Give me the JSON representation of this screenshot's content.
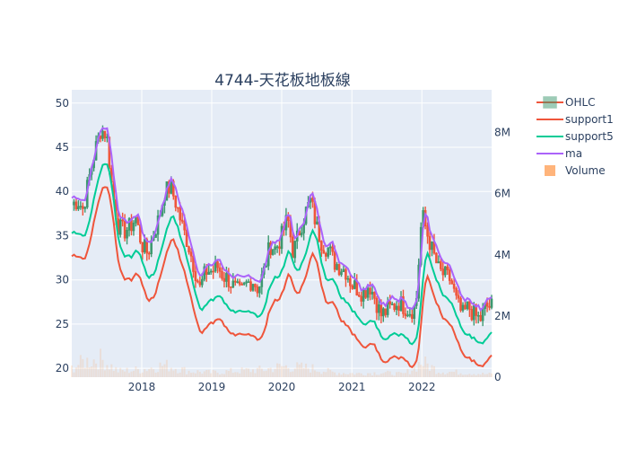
{
  "chart_data": {
    "type": "candlestick",
    "title": "4744-天花板地板線",
    "x_ticks": [
      "2018",
      "2019",
      "2020",
      "2021",
      "2022"
    ],
    "y_ticks": [
      20,
      25,
      30,
      35,
      40,
      45,
      50
    ],
    "y_range": [
      19,
      51.5
    ],
    "y2_ticks": [
      "0",
      "2M",
      "4M",
      "6M",
      "8M"
    ],
    "y2_tick_values": [
      0,
      2,
      4,
      6,
      8
    ],
    "y2_range": [
      0,
      9.4
    ],
    "x_range": [
      "2017-01-01",
      "2022-12-31"
    ],
    "legend": [
      "OHLC",
      "support1",
      "support5",
      "ma",
      "Volume"
    ],
    "colors": {
      "increasing": "#3d9970",
      "decreasing": "#ef553b",
      "support1": "#ef553b",
      "support5": "#00cc96",
      "ma": "#ab63fa",
      "volume": "#ffa15a",
      "plot_bg": "#e5ecf6",
      "grid": "#ffffff"
    },
    "close_series": [
      [
        "2017-01-01",
        38.5
      ],
      [
        "2017-02-01",
        39.0
      ],
      [
        "2017-03-01",
        38.0
      ],
      [
        "2017-04-01",
        41.5
      ],
      [
        "2017-05-01",
        44.5
      ],
      [
        "2017-06-01",
        47.0
      ],
      [
        "2017-07-01",
        46.5
      ],
      [
        "2017-08-01",
        40.0
      ],
      [
        "2017-09-01",
        36.0
      ],
      [
        "2017-10-01",
        35.5
      ],
      [
        "2017-11-01",
        36.0
      ],
      [
        "2017-12-01",
        37.0
      ],
      [
        "2018-01-01",
        34.0
      ],
      [
        "2018-02-01",
        33.0
      ],
      [
        "2018-03-01",
        35.0
      ],
      [
        "2018-04-01",
        37.0
      ],
      [
        "2018-05-01",
        40.0
      ],
      [
        "2018-06-01",
        40.5
      ],
      [
        "2018-07-01",
        38.5
      ],
      [
        "2018-08-01",
        36.0
      ],
      [
        "2018-09-01",
        34.0
      ],
      [
        "2018-10-01",
        31.5
      ],
      [
        "2018-11-01",
        29.0
      ],
      [
        "2018-12-01",
        31.0
      ],
      [
        "2019-01-01",
        31.0
      ],
      [
        "2019-02-01",
        31.5
      ],
      [
        "2019-03-01",
        30.5
      ],
      [
        "2019-04-01",
        30.0
      ],
      [
        "2019-05-01",
        29.0
      ],
      [
        "2019-06-01",
        28.5
      ],
      [
        "2019-07-01",
        29.5
      ],
      [
        "2019-08-01",
        30.0
      ],
      [
        "2019-09-01",
        29.0
      ],
      [
        "2019-10-01",
        31.0
      ],
      [
        "2019-11-01",
        34.0
      ],
      [
        "2019-12-01",
        33.5
      ],
      [
        "2020-01-01",
        35.0
      ],
      [
        "2020-02-01",
        37.0
      ],
      [
        "2020-03-01",
        33.0
      ],
      [
        "2020-04-01",
        35.5
      ],
      [
        "2020-05-01",
        37.5
      ],
      [
        "2020-06-01",
        39.0
      ],
      [
        "2020-07-01",
        36.0
      ],
      [
        "2020-08-01",
        34.0
      ],
      [
        "2020-09-01",
        33.5
      ],
      [
        "2020-10-01",
        32.0
      ],
      [
        "2020-11-01",
        31.5
      ],
      [
        "2020-12-01",
        31.0
      ],
      [
        "2021-01-01",
        29.5
      ],
      [
        "2021-02-01",
        29.0
      ],
      [
        "2021-03-01",
        28.5
      ],
      [
        "2021-04-01",
        29.5
      ],
      [
        "2021-05-01",
        28.0
      ],
      [
        "2021-06-01",
        26.0
      ],
      [
        "2021-07-01",
        26.5
      ],
      [
        "2021-08-01",
        27.0
      ],
      [
        "2021-09-01",
        27.5
      ],
      [
        "2021-10-01",
        27.0
      ],
      [
        "2021-11-01",
        26.5
      ],
      [
        "2021-12-01",
        27.0
      ],
      [
        "2022-01-01",
        37.5
      ],
      [
        "2022-02-01",
        35.0
      ],
      [
        "2022-03-01",
        33.0
      ],
      [
        "2022-04-01",
        31.0
      ],
      [
        "2022-05-01",
        30.5
      ],
      [
        "2022-06-01",
        30.0
      ],
      [
        "2022-07-01",
        27.5
      ],
      [
        "2022-08-01",
        26.0
      ],
      [
        "2022-09-01",
        27.0
      ],
      [
        "2022-10-01",
        26.0
      ],
      [
        "2022-11-01",
        25.5
      ],
      [
        "2022-12-01",
        27.0
      ]
    ],
    "ma_offset": 0.8,
    "support5_offset": 3.2,
    "support1_offset": 5.8,
    "volume_series": [
      [
        "2017-01-01",
        0.3
      ],
      [
        "2017-03-01",
        0.5
      ],
      [
        "2017-06-01",
        0.6
      ],
      [
        "2017-09-01",
        0.2
      ],
      [
        "2018-01-01",
        0.25
      ],
      [
        "2018-05-01",
        0.4
      ],
      [
        "2018-09-01",
        0.2
      ],
      [
        "2019-01-01",
        0.15
      ],
      [
        "2019-05-01",
        0.2
      ],
      [
        "2019-10-01",
        0.25
      ],
      [
        "2020-01-01",
        0.35
      ],
      [
        "2020-06-01",
        0.3
      ],
      [
        "2020-10-01",
        0.15
      ],
      [
        "2021-02-01",
        0.12
      ],
      [
        "2021-06-01",
        0.15
      ],
      [
        "2021-10-01",
        0.1
      ],
      [
        "2022-01-01",
        0.5
      ],
      [
        "2022-04-01",
        0.2
      ],
      [
        "2022-08-01",
        0.15
      ],
      [
        "2022-12-01",
        0.1
      ]
    ]
  }
}
